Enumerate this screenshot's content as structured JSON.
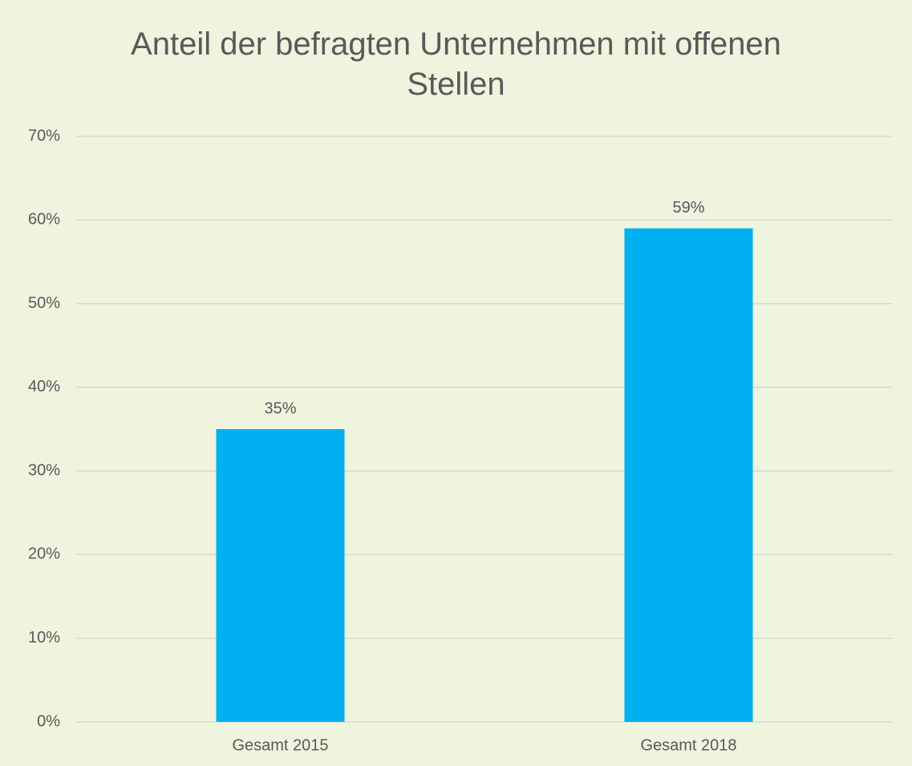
{
  "chart_data": {
    "type": "bar",
    "title": "Anteil der befragten Unternehmen mit offenen Stellen",
    "categories": [
      "Gesamt 2015",
      "Gesamt 2018"
    ],
    "values": [
      35,
      59
    ],
    "value_labels": [
      "35%",
      "59%"
    ],
    "color": "#00b0f0",
    "ylim": [
      0,
      70
    ],
    "yticks": [
      {
        "value": 0,
        "label": "0%"
      },
      {
        "value": 10,
        "label": "10%"
      },
      {
        "value": 20,
        "label": "20%"
      },
      {
        "value": 30,
        "label": "30%"
      },
      {
        "value": 40,
        "label": "40%"
      },
      {
        "value": 50,
        "label": "50%"
      },
      {
        "value": 60,
        "label": "60%"
      },
      {
        "value": 70,
        "label": "70%"
      }
    ],
    "grid": true
  }
}
